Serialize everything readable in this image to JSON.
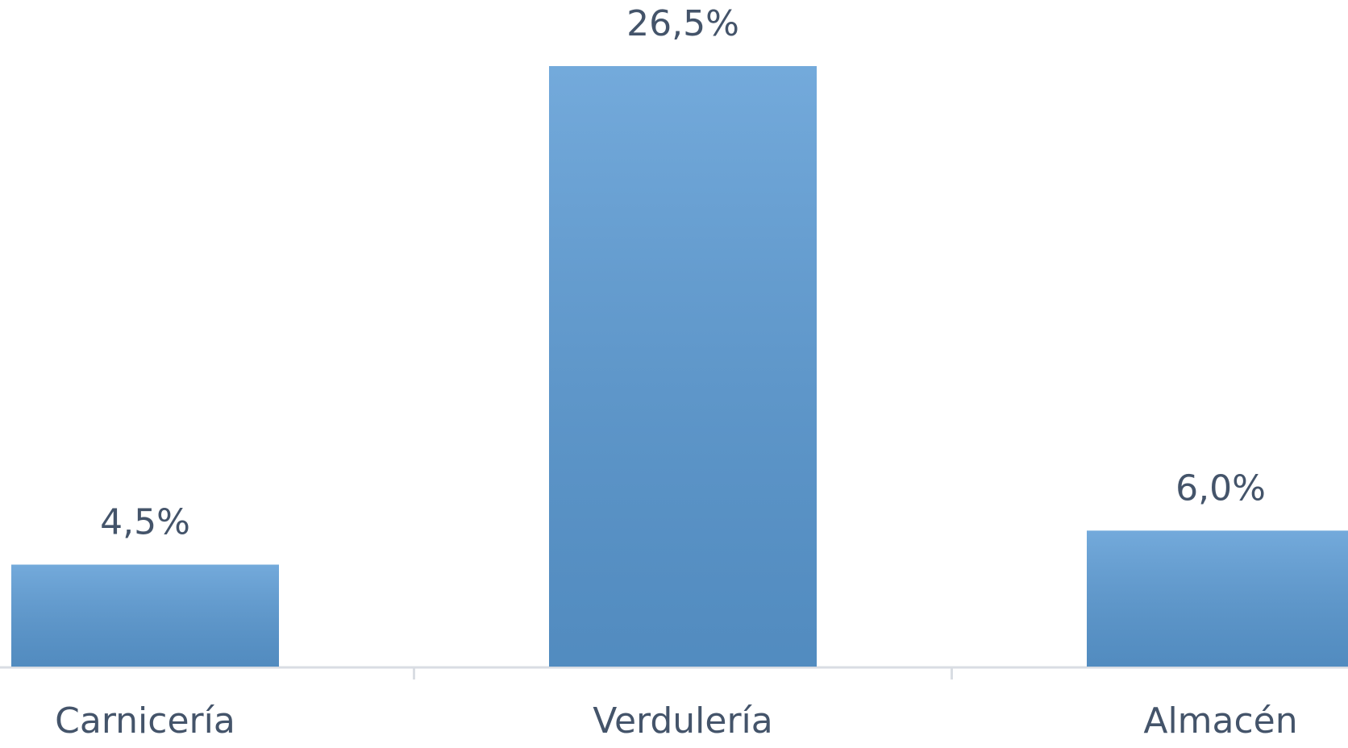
{
  "chart_data": {
    "type": "bar",
    "categories": [
      "Carnicería",
      "Verdulería",
      "Almacén"
    ],
    "values": [
      4.5,
      26.5,
      6.0
    ],
    "value_labels": [
      "4,5%",
      "26,5%",
      "6,0%"
    ],
    "color": "#5b9bd5"
  }
}
